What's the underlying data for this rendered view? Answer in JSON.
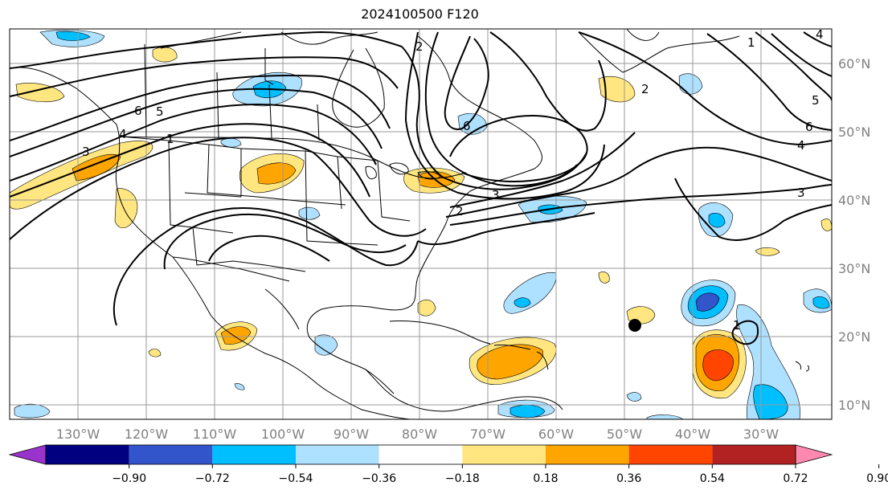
{
  "title": "2024100500 F120",
  "map": {
    "lon_labels": [
      "130°W",
      "120°W",
      "110°W",
      "100°W",
      "90°W",
      "80°W",
      "70°W",
      "60°W",
      "50°W",
      "40°W",
      "30°W"
    ],
    "lat_labels": [
      "60°N",
      "50°N",
      "40°N",
      "30°N",
      "20°N",
      "10°N"
    ],
    "contour_labels": [
      "1",
      "2",
      "3",
      "4",
      "5",
      "6",
      "1",
      "2",
      "3",
      "4",
      "5",
      "6",
      "1",
      "2",
      "3",
      "4",
      "5",
      "6",
      "1",
      "2",
      "3",
      "4",
      "1"
    ]
  },
  "colorbar": {
    "ticks": [
      "−0.90",
      "−0.72",
      "−0.54",
      "−0.36",
      "−0.18",
      "0.18",
      "0.36",
      "0.54",
      "0.72",
      "0.90"
    ],
    "colors": [
      "#9933cc",
      "#000080",
      "#3355cc",
      "#00bfff",
      "#aee0ff",
      "#ffffff",
      "#ffe680",
      "#ffa500",
      "#ff4500",
      "#b22222",
      "#ff88b0"
    ]
  },
  "colors": {
    "land_line": "#000000",
    "grid": "#999999",
    "storm_marker": "#000000"
  }
}
